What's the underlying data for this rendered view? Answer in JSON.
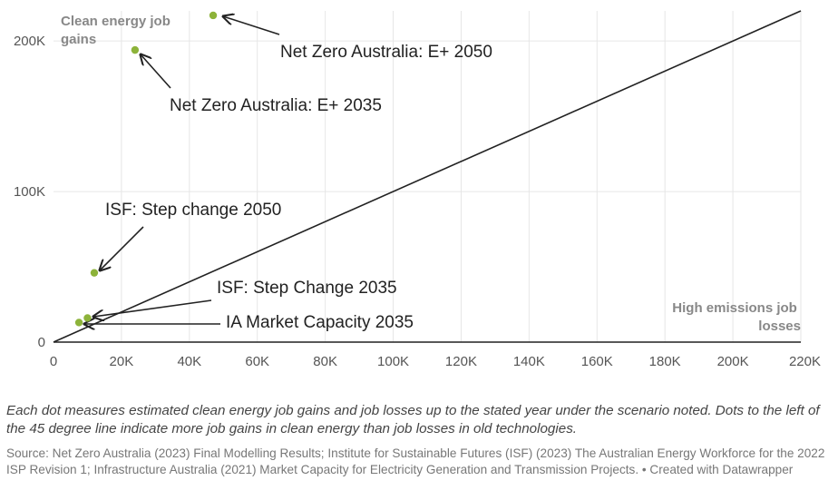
{
  "chart_data": {
    "type": "scatter",
    "xlabel": "High emissions job losses",
    "ylabel": "Clean energy job gains",
    "xlim": [
      0,
      220000
    ],
    "ylim": [
      0,
      220000
    ],
    "x_ticks": [
      0,
      20000,
      40000,
      60000,
      80000,
      100000,
      120000,
      140000,
      160000,
      180000,
      200000,
      220000
    ],
    "x_tick_labels": [
      "0",
      "20K",
      "40K",
      "60K",
      "80K",
      "100K",
      "120K",
      "140K",
      "160K",
      "180K",
      "200K",
      "220K"
    ],
    "y_ticks": [
      0,
      100000,
      200000
    ],
    "y_tick_labels": [
      "0",
      "100K",
      "200K"
    ],
    "grid": true,
    "reference_line": "45 degree",
    "point_color": "#8db33a",
    "points": [
      {
        "label": "Net Zero Australia: E+ 2050",
        "x": 47000,
        "y": 217000
      },
      {
        "label": "Net Zero Australia: E+ 2035",
        "x": 24000,
        "y": 194000
      },
      {
        "label": "ISF: Step change 2050",
        "x": 12000,
        "y": 46000
      },
      {
        "label": "ISF: Step Change 2035",
        "x": 10000,
        "y": 16000
      },
      {
        "label": "IA Market Capacity 2035",
        "x": 7500,
        "y": 13000
      }
    ]
  },
  "notes": {
    "description": "Each dot measures estimated clean energy job gains and job losses up to the stated year under the scenario noted. Dots to the left of the 45 degree line indicate more job gains in clean energy than job losses in old technologies.",
    "source": "Source: Net Zero Australia (2023) Final Modelling Results; Institute for Sustainable Futures (ISF) (2023) The Australian Energy Workforce for the 2022 ISP Revision 1; Infrastructure Australia (2021) Market Capacity for Electricity Generation and Transmission Projects. • Created with Datawrapper"
  }
}
